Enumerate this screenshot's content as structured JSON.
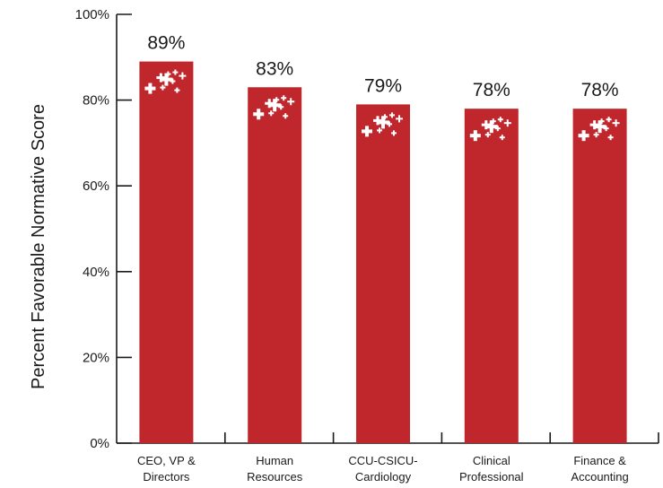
{
  "chart_data": {
    "type": "bar",
    "categories": [
      [
        "CEO, VP &",
        "Directors"
      ],
      [
        "Human",
        "Resources"
      ],
      [
        "CCU-CSICU-",
        "Cardiology"
      ],
      [
        "Clinical",
        "Professional"
      ],
      [
        "Finance &",
        "Accounting"
      ]
    ],
    "values": [
      89,
      83,
      79,
      78,
      78
    ],
    "value_labels": [
      "89%",
      "83%",
      "79%",
      "78%",
      "78%"
    ],
    "ylabel": "Percent Favorable Normative Score",
    "ylim": [
      0,
      100
    ],
    "yticks": [
      0,
      20,
      40,
      60,
      80,
      100
    ],
    "ytick_labels": [
      "0%",
      "20%",
      "40%",
      "60%",
      "80%",
      "100%"
    ],
    "bar_color": "#c0272d",
    "mark_color": "#ffffff",
    "grid": false,
    "legend": "none"
  }
}
